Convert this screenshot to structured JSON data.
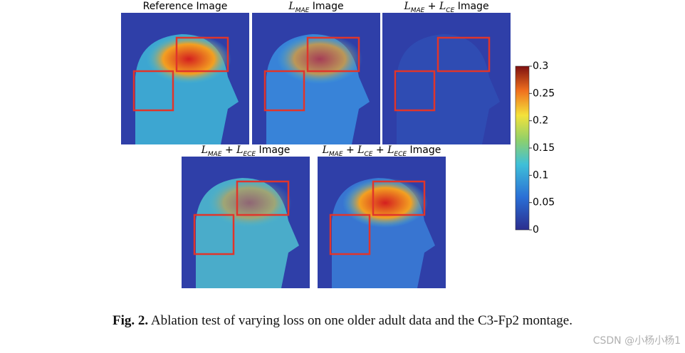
{
  "panels": [
    {
      "title": [
        {
          "t": "Reference Image"
        }
      ]
    },
    {
      "title": [
        {
          "t": "L"
        },
        {
          "sub": "MAE"
        },
        {
          "t": " Image"
        }
      ]
    },
    {
      "title": [
        {
          "t": "L"
        },
        {
          "sub": "MAE"
        },
        {
          "t": " + "
        },
        {
          "t": "L"
        },
        {
          "sub": "CE"
        },
        {
          "t": " Image"
        }
      ]
    },
    {
      "title": [
        {
          "t": "L"
        },
        {
          "sub": "MAE"
        },
        {
          "t": " + "
        },
        {
          "t": "L"
        },
        {
          "sub": "ECE"
        },
        {
          "t": " Image"
        }
      ]
    },
    {
      "title": [
        {
          "t": "L"
        },
        {
          "sub": "MAE"
        },
        {
          "t": " + "
        },
        {
          "t": "L"
        },
        {
          "sub": "CE"
        },
        {
          "t": " + "
        },
        {
          "t": "L"
        },
        {
          "sub": "ECE"
        },
        {
          "t": " Image"
        }
      ]
    }
  ],
  "colorbar": {
    "lim": [
      0,
      0.3
    ],
    "ticks": [
      0,
      0.05,
      0.1,
      0.15,
      0.2,
      0.25,
      0.3
    ]
  },
  "caption": {
    "label": "Fig. 2.",
    "text": "Ablation test of varying loss on one older adult data and the C3-Fp2 montage."
  },
  "watermark": "CSDN @小杨小杨1"
}
